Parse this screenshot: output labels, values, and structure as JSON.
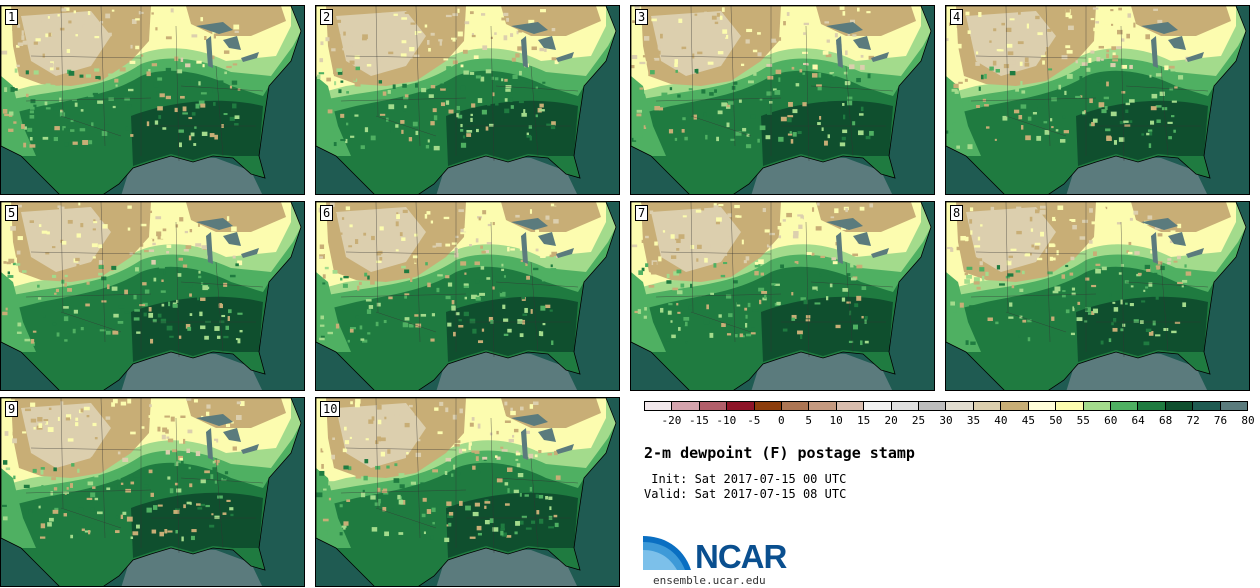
{
  "title": "2-m dewpoint (F) postage stamp",
  "init_text": " Init: Sat 2017-07-15 00 UTC",
  "valid_text": "Valid: Sat 2017-07-15 08 UTC",
  "logo": {
    "name": "NCAR",
    "url_text": "ensemble.ucar.edu"
  },
  "members": [
    "1",
    "2",
    "3",
    "4",
    "5",
    "6",
    "7",
    "8",
    "9",
    "10"
  ],
  "colorbar": {
    "ticks": [
      "-20",
      "-15",
      "-10",
      "-5",
      "0",
      "5",
      "10",
      "15",
      "20",
      "25",
      "30",
      "35",
      "40",
      "45",
      "50",
      "55",
      "60",
      "64",
      "68",
      "72",
      "76",
      "80"
    ],
    "colors": [
      "#f2e8ec",
      "#d4a3ad",
      "#b25e6a",
      "#8e1428",
      "#8c3d0c",
      "#ad7654",
      "#c59a80",
      "#d9bdae",
      "#f2f2f2",
      "#e0e0e0",
      "#bdbdbd",
      "#e2ddd0",
      "#dccfae",
      "#c8ae76",
      "#fffdd9",
      "#fcfcaf",
      "#a3db8c",
      "#4fb062",
      "#1f7b40",
      "#0f4f2e",
      "#1f5b52",
      "#5b7b7d"
    ]
  },
  "map_colors": {
    "ocean": "#1f5b52",
    "gulf": "#5b7b7d",
    "dry_tan": "#c8ae76",
    "light_tan": "#dccfae",
    "cream": "#fcfcaf",
    "light_green": "#a3db8c",
    "green": "#4fb062",
    "dark_green": "#1f7b40",
    "darkest_green": "#0f4f2e"
  }
}
